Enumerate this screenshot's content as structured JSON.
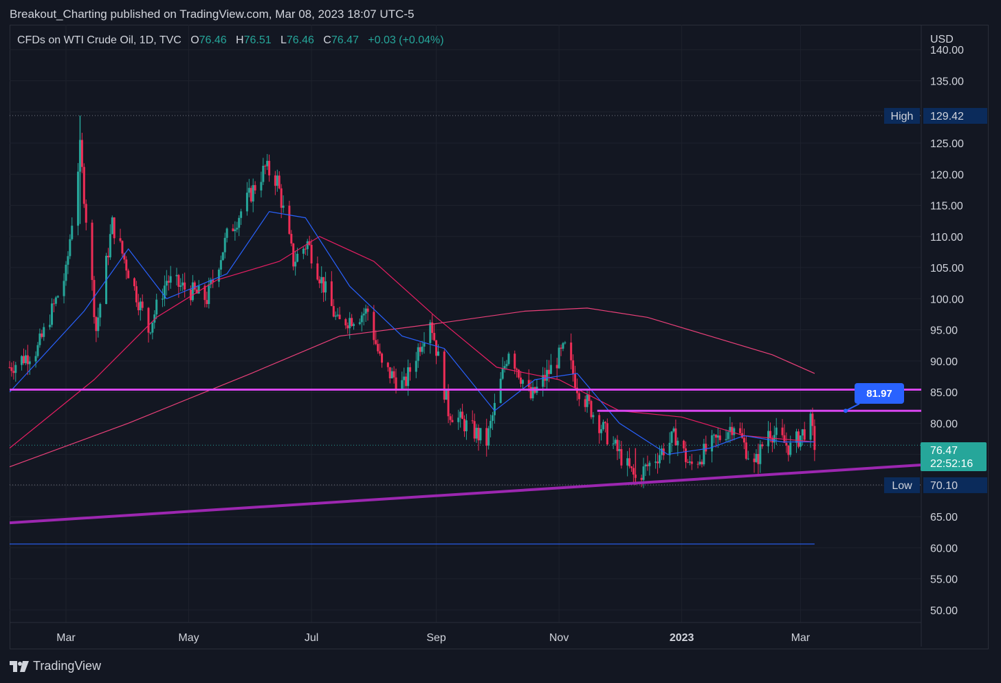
{
  "header": {
    "text": "Breakout_Charting published on TradingView.com, Mar 08, 2023 18:07 UTC-5"
  },
  "legend": {
    "symbol": "CFDs on WTI Crude Oil, 1D, TVC",
    "o_label": "O",
    "o": "76.46",
    "h_label": "H",
    "h": "76.51",
    "l_label": "L",
    "l": "76.46",
    "c_label": "C",
    "c": "76.47",
    "change": "+0.03 (+0.04%)"
  },
  "footer": {
    "brand": "TradingView",
    "logo_icon": "tradingview-logo-icon"
  },
  "colors": {
    "up": "#26a69a",
    "down": "#ef2d56",
    "ma_fast": "#2962ff",
    "ma_mid": "#e91e63",
    "ma_slow": "#ec407a",
    "trend": "#9c27b0",
    "level": "#d946ef"
  },
  "chart_data": {
    "type": "candlestick",
    "currency": "USD",
    "y_ticks": [
      "140.00",
      "135.00",
      "125.00",
      "120.00",
      "115.00",
      "110.00",
      "105.00",
      "100.00",
      "95.00",
      "90.00",
      "85.00",
      "80.00",
      "65.00",
      "60.00",
      "55.00",
      "50.00"
    ],
    "x_ticks": [
      "Mar",
      "May",
      "Jul",
      "Sep",
      "Nov",
      "2023",
      "Mar"
    ],
    "ylim": [
      48,
      144
    ],
    "high": {
      "label": "High",
      "value": 129.42
    },
    "low": {
      "label": "Low",
      "value": 70.1
    },
    "last": {
      "value": "76.47",
      "countdown": "22:52:16"
    },
    "callout": {
      "value": "81.97"
    },
    "price_path": [
      [
        "2022-02-01",
        89
      ],
      [
        "2022-02-15",
        92
      ],
      [
        "2022-03-01",
        104
      ],
      [
        "2022-03-08",
        124
      ],
      [
        "2022-03-16",
        95
      ],
      [
        "2022-03-24",
        112
      ],
      [
        "2022-04-11",
        95
      ],
      [
        "2022-04-20",
        103
      ],
      [
        "2022-05-10",
        100
      ],
      [
        "2022-05-20",
        110
      ],
      [
        "2022-06-08",
        121
      ],
      [
        "2022-06-14",
        119
      ],
      [
        "2022-06-22",
        106
      ],
      [
        "2022-06-29",
        109
      ],
      [
        "2022-07-14",
        96
      ],
      [
        "2022-07-29",
        98
      ],
      [
        "2022-08-05",
        89
      ],
      [
        "2022-08-16",
        86
      ],
      [
        "2022-08-29",
        97
      ],
      [
        "2022-09-07",
        82
      ],
      [
        "2022-09-26",
        77
      ],
      [
        "2022-10-07",
        92
      ],
      [
        "2022-10-18",
        84
      ],
      [
        "2022-11-04",
        92
      ],
      [
        "2022-11-10",
        86
      ],
      [
        "2022-11-21",
        80
      ],
      [
        "2022-12-09",
        71
      ],
      [
        "2022-12-29",
        78
      ],
      [
        "2023-01-05",
        73
      ],
      [
        "2023-01-27",
        80
      ],
      [
        "2023-02-06",
        73
      ],
      [
        "2023-02-13",
        79
      ],
      [
        "2023-02-24",
        76
      ],
      [
        "2023-03-06",
        80
      ],
      [
        "2023-03-08",
        76.5
      ]
    ],
    "ma_fast": [
      [
        "2022-02-01",
        85
      ],
      [
        "2022-03-10",
        98
      ],
      [
        "2022-04-01",
        108
      ],
      [
        "2022-04-20",
        100
      ],
      [
        "2022-05-20",
        104
      ],
      [
        "2022-06-10",
        114
      ],
      [
        "2022-06-28",
        113
      ],
      [
        "2022-07-20",
        102
      ],
      [
        "2022-08-15",
        94
      ],
      [
        "2022-09-05",
        92
      ],
      [
        "2022-09-30",
        82
      ],
      [
        "2022-10-20",
        87
      ],
      [
        "2022-11-10",
        88
      ],
      [
        "2022-12-01",
        80
      ],
      [
        "2022-12-25",
        75
      ],
      [
        "2023-01-15",
        76
      ],
      [
        "2023-02-01",
        78
      ],
      [
        "2023-02-20",
        77
      ],
      [
        "2023-03-08",
        77
      ]
    ],
    "ma_mid": [
      [
        "2022-02-01",
        76
      ],
      [
        "2022-03-15",
        87
      ],
      [
        "2022-04-15",
        97
      ],
      [
        "2022-05-15",
        103
      ],
      [
        "2022-06-15",
        106
      ],
      [
        "2022-07-05",
        110
      ],
      [
        "2022-08-01",
        106
      ],
      [
        "2022-09-01",
        97
      ],
      [
        "2022-10-01",
        89
      ],
      [
        "2022-11-01",
        87
      ],
      [
        "2022-12-01",
        82
      ],
      [
        "2023-01-01",
        81
      ],
      [
        "2023-02-01",
        78
      ],
      [
        "2023-03-08",
        77
      ]
    ],
    "ma_slow": [
      [
        "2022-02-01",
        73
      ],
      [
        "2022-04-01",
        80
      ],
      [
        "2022-06-01",
        88
      ],
      [
        "2022-07-15",
        94
      ],
      [
        "2022-09-01",
        96
      ],
      [
        "2022-10-15",
        98
      ],
      [
        "2022-11-15",
        98.5
      ],
      [
        "2022-12-15",
        97
      ],
      [
        "2023-01-15",
        94
      ],
      [
        "2023-02-15",
        91
      ],
      [
        "2023-03-08",
        88
      ]
    ],
    "levels": [
      {
        "from": "2022-02-01",
        "to": "2023-04-30",
        "value": 85.4
      },
      {
        "from": "2022-11-20",
        "to": "2023-04-30",
        "value": 82.0
      },
      {
        "from": "2022-02-01",
        "to": "2023-03-08",
        "value": 60.6
      }
    ],
    "trendline": {
      "from": [
        "2022-02-01",
        64.0
      ],
      "to": [
        "2023-04-30",
        73.3
      ]
    }
  }
}
